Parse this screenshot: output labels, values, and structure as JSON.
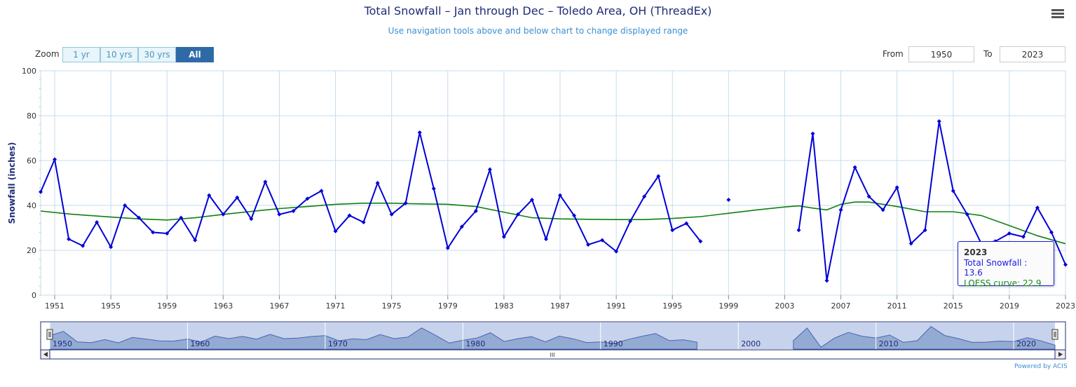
{
  "header": {
    "title": "Total Snowfall – Jan through Dec – Toledo Area, OH (ThreadEx)",
    "subtitle": "Use navigation tools above and below chart to change displayed range"
  },
  "zoom": {
    "label": "Zoom",
    "buttons": [
      "1 yr",
      "10 yrs",
      "30 yrs",
      "All"
    ],
    "active": "All"
  },
  "range": {
    "from_label": "From",
    "from_value": "1950",
    "to_label": "To",
    "to_value": "2023"
  },
  "tooltip": {
    "title": "2023",
    "row1": "Total Snowfall : 13.6",
    "row2": "LOESS curve: 22.9"
  },
  "navigator": {
    "labels": [
      "1950",
      "1960",
      "1970",
      "1980",
      "1990",
      "2000",
      "2010",
      "2020"
    ],
    "scroll_grip": "III"
  },
  "credit": "Powered by ACIS",
  "colors": {
    "snow": "#0000d8",
    "loess": "#108010",
    "grid": "#c6dcec",
    "navfill": "#c7d3ec",
    "navarea": "#8aa2cf"
  },
  "chart_data": {
    "type": "line",
    "title": "Total Snowfall – Jan through Dec – Toledo Area, OH (ThreadEx)",
    "ylabel": "Snowfall (inches)",
    "xlabel": "",
    "ylim": [
      0,
      100
    ],
    "xlim": [
      1950,
      2023
    ],
    "yticks": [
      0,
      20,
      40,
      60,
      80,
      100
    ],
    "xticks": [
      1951,
      1955,
      1959,
      1963,
      1967,
      1971,
      1975,
      1979,
      1983,
      1987,
      1991,
      1995,
      1999,
      2003,
      2007,
      2011,
      2015,
      2019,
      2023
    ],
    "grid": true,
    "series": [
      {
        "name": "Total Snowfall",
        "segments": [
          {
            "x": [
              1950,
              1951,
              1952,
              1953,
              1954,
              1955,
              1956,
              1957,
              1958,
              1959,
              1960,
              1961,
              1962,
              1963,
              1964,
              1965,
              1966,
              1967,
              1968,
              1969,
              1970,
              1971,
              1972,
              1973,
              1974,
              1975,
              1976,
              1977,
              1978,
              1979,
              1980,
              1981,
              1982,
              1983,
              1984,
              1985,
              1986,
              1987,
              1988,
              1989,
              1990,
              1991,
              1992,
              1993,
              1994,
              1995,
              1996,
              1997
            ],
            "y": [
              46,
              60.5,
              25,
              22,
              32.5,
              21.5,
              40,
              34.5,
              28,
              27.5,
              34.5,
              24.5,
              44.5,
              36,
              43.5,
              34,
              50.5,
              36,
              37.5,
              43,
              46.5,
              28.5,
              35.5,
              32.5,
              50,
              36,
              41,
              72.5,
              47.5,
              21,
              30.5,
              37.5,
              56,
              26,
              36,
              42.5,
              25,
              44.5,
              35.5,
              22.5,
              24.5,
              19.5,
              33,
              44,
              53,
              29,
              32,
              24
            ]
          },
          {
            "x": [
              1999
            ],
            "y": [
              42.5
            ]
          },
          {
            "x": [
              2004,
              2005,
              2006,
              2007,
              2008,
              2009,
              2010,
              2011,
              2012,
              2013,
              2014,
              2015,
              2016,
              2017,
              2018,
              2019,
              2020,
              2021,
              2022,
              2023
            ],
            "y": [
              29,
              72,
              6.5,
              38,
              57,
              44,
              38,
              48,
              23,
              29,
              77.5,
              46.5,
              36,
              23,
              24,
              27.5,
              26,
              39,
              28,
              13.6
            ]
          }
        ]
      },
      {
        "name": "LOESS curve",
        "x": [
          1950,
          1952,
          1955,
          1957,
          1959,
          1961,
          1963,
          1965,
          1967,
          1969,
          1971,
          1973,
          1975,
          1977,
          1979,
          1981,
          1983,
          1985,
          1987,
          1989,
          1991,
          1993,
          1995,
          1997,
          1999,
          2001,
          2003,
          2004,
          2005,
          2006,
          2007,
          2008,
          2009,
          2011,
          2013,
          2015,
          2017,
          2019,
          2021,
          2023
        ],
        "y": [
          37.5,
          36.2,
          34.8,
          34,
          33.5,
          34.5,
          36,
          37.3,
          38.6,
          39.5,
          40.5,
          41,
          41,
          40.7,
          40.5,
          39.5,
          37,
          34.5,
          34,
          33.8,
          33.7,
          33.7,
          34.2,
          35,
          36.5,
          38,
          39.3,
          39.8,
          38.8,
          38,
          40.5,
          41.5,
          41.5,
          39.5,
          37.2,
          37.2,
          35.5,
          31,
          26.5,
          22.9
        ]
      }
    ]
  }
}
